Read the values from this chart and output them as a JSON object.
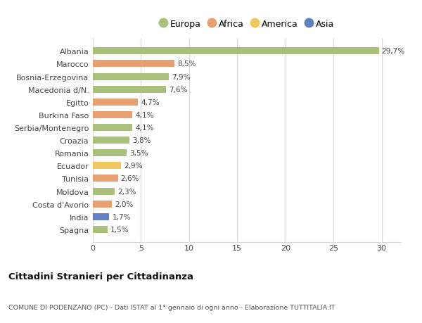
{
  "countries": [
    "Spagna",
    "India",
    "Costa d'Avorio",
    "Moldova",
    "Tunisia",
    "Ecuador",
    "Romania",
    "Croazia",
    "Serbia/Montenegro",
    "Burkina Faso",
    "Egitto",
    "Macedonia d/N.",
    "Bosnia-Erzegovina",
    "Marocco",
    "Albania"
  ],
  "values": [
    1.5,
    1.7,
    2.0,
    2.3,
    2.6,
    2.9,
    3.5,
    3.8,
    4.1,
    4.1,
    4.7,
    7.6,
    7.9,
    8.5,
    29.7
  ],
  "labels": [
    "1,5%",
    "1,7%",
    "2,0%",
    "2,3%",
    "2,6%",
    "2,9%",
    "3,5%",
    "3,8%",
    "4,1%",
    "4,1%",
    "4,7%",
    "7,6%",
    "7,9%",
    "8,5%",
    "29,7%"
  ],
  "colors": [
    "#a8c07a",
    "#6080c0",
    "#e8a070",
    "#a8c07a",
    "#e8a070",
    "#f0c860",
    "#a8c07a",
    "#a8c07a",
    "#a8c07a",
    "#e8a070",
    "#e8a070",
    "#a8c07a",
    "#a8c07a",
    "#e8a070",
    "#a8c07a"
  ],
  "legend_labels": [
    "Europa",
    "Africa",
    "America",
    "Asia"
  ],
  "legend_colors": [
    "#a8c07a",
    "#e8a070",
    "#f0c860",
    "#6080c0"
  ],
  "title_main": "Cittadini Stranieri per Cittadinanza",
  "title_sub": "COMUNE DI PODENZANO (PC) - Dati ISTAT al 1° gennaio di ogni anno - Elaborazione TUTTITALIA.IT",
  "xlim": [
    0,
    32
  ],
  "xticks": [
    0,
    5,
    10,
    15,
    20,
    25,
    30
  ],
  "bg_color": "#ffffff",
  "grid_color": "#d8d8d8",
  "bar_height": 0.55
}
